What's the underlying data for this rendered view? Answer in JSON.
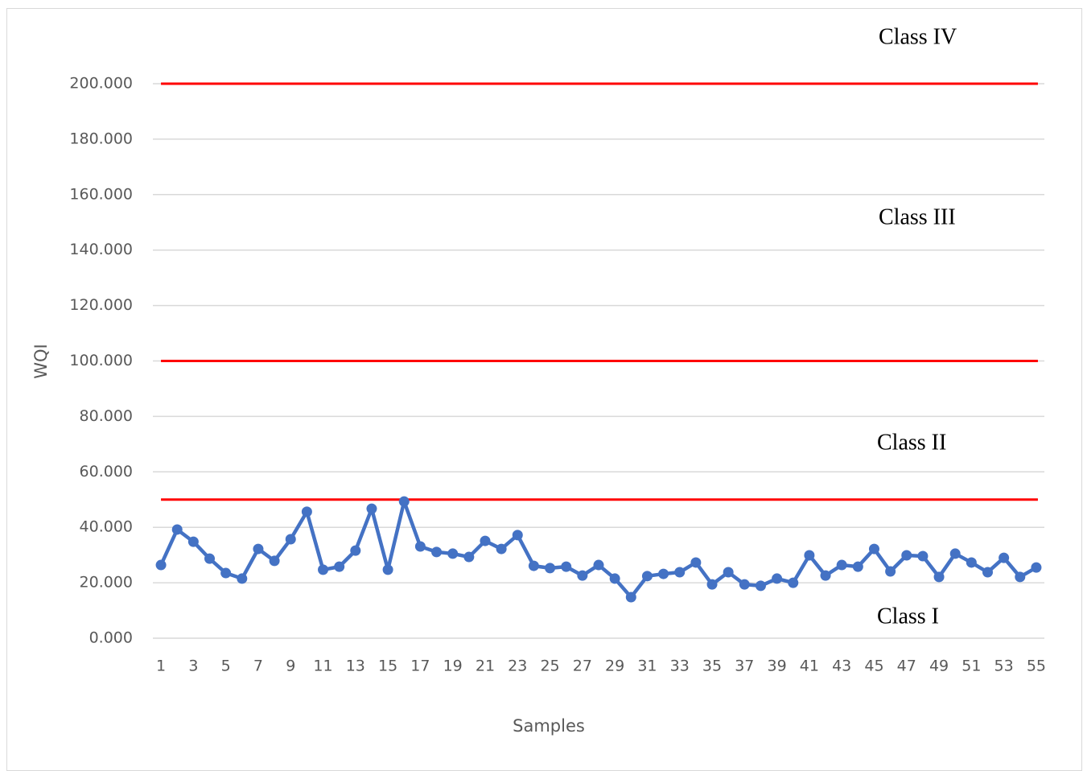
{
  "chart_data": {
    "type": "line",
    "x_label": "Samples",
    "y_label": "WQI",
    "categories": [
      "1",
      null,
      "3",
      null,
      "5",
      null,
      "7",
      null,
      "9",
      null,
      "11",
      null,
      "13",
      null,
      "15",
      null,
      "17",
      null,
      "19",
      null,
      "21",
      null,
      "23",
      null,
      "25",
      null,
      "27",
      null,
      "29",
      null,
      "31",
      null,
      "33",
      null,
      "35",
      null,
      "37",
      null,
      "39",
      null,
      "41",
      null,
      "43",
      null,
      "45",
      null,
      "47",
      null,
      "49",
      null,
      "51",
      null,
      "53",
      null,
      "55"
    ],
    "series": [
      {
        "name": "WQI",
        "color": "#4472c4",
        "values": [
          26.4,
          39.2,
          34.8,
          28.7,
          23.5,
          21.5,
          32.2,
          27.9,
          35.7,
          45.6,
          24.7,
          25.8,
          31.6,
          46.7,
          24.7,
          49.3,
          33.1,
          31.1,
          30.5,
          29.3,
          35.1,
          32.2,
          37.2,
          26.1,
          25.3,
          25.8,
          22.6,
          26.4,
          21.5,
          14.8,
          22.4,
          23.2,
          23.8,
          27.3,
          19.4,
          23.8,
          19.4,
          18.9,
          21.5,
          20.0,
          29.9,
          22.6,
          26.4,
          25.8,
          32.2,
          24.1,
          29.9,
          29.6,
          22.1,
          30.5,
          27.3,
          23.8,
          29.0,
          22.1,
          25.5
        ]
      }
    ],
    "reference_lines": {
      "values": [
        50,
        100,
        200
      ],
      "color": "#ff0000"
    },
    "annotations": [
      "Class IV",
      "Class III",
      "Class II",
      "Class I"
    ],
    "ylim": [
      0,
      200
    ],
    "yticks": [
      {
        "value": 0,
        "label": "0.000"
      },
      {
        "value": 20,
        "label": "20.000"
      },
      {
        "value": 40,
        "label": "40.000"
      },
      {
        "value": 60,
        "label": "60.000"
      },
      {
        "value": 80,
        "label": "80.000"
      },
      {
        "value": 100,
        "label": "100.000"
      },
      {
        "value": 120,
        "label": "120.000"
      },
      {
        "value": 140,
        "label": "140.000"
      },
      {
        "value": 160,
        "label": "160.000"
      },
      {
        "value": 180,
        "label": "180.000"
      },
      {
        "value": 200,
        "label": "200.000"
      }
    ],
    "grid": true
  }
}
